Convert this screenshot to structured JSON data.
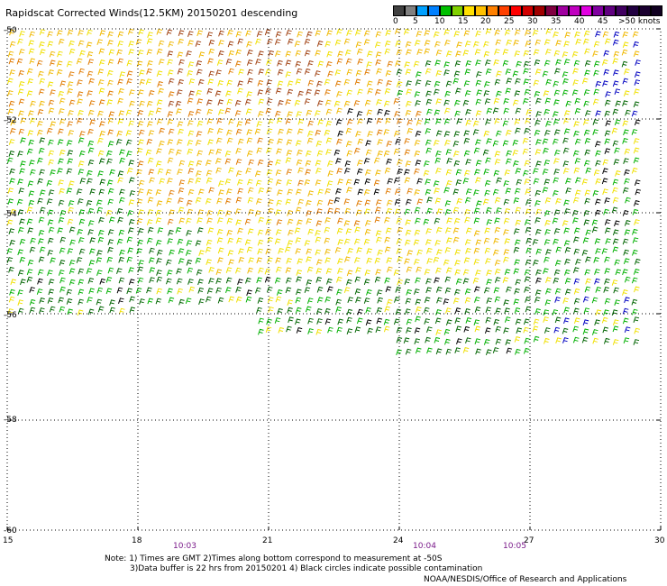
{
  "title": "Rapidscat Corrected Winds(12.5KM) 20150201 descending",
  "legend": {
    "labels": [
      "0",
      "5",
      "10",
      "15",
      "20",
      "25",
      "30",
      "35",
      "40",
      "45",
      ">50 knots"
    ],
    "colors": [
      "#404040",
      "#808080",
      "#00a0ff",
      "#0080ff",
      "#00c000",
      "#80d000",
      "#ffe000",
      "#ffc000",
      "#ff8000",
      "#ff4000",
      "#ff0000",
      "#d00000",
      "#a00000",
      "#800040",
      "#a000a0",
      "#c000c0",
      "#e000e0",
      "#8000a0",
      "#600080",
      "#400060",
      "#200040",
      "#1a0030",
      "#100020"
    ]
  },
  "axes": {
    "y_labels": [
      "-50",
      "-52",
      "-54",
      "-56",
      "-58",
      "-60"
    ],
    "x_labels": [
      "15",
      "18",
      "21",
      "24",
      "27",
      "30"
    ]
  },
  "times": [
    "10:03",
    "10:04",
    "10:05"
  ],
  "notes": {
    "line1": "Note: 1) Times are GMT 2)Times along bottom correspond to measurement at -50S",
    "line2": "3)Data buffer is 22 hrs from 20150201 4) Black circles indicate possible contamination"
  },
  "credit": "NOAA/NESDIS/Office of Research and Applications",
  "colors": {
    "calm": "#000000",
    "blue": "#0000c0",
    "dark_green": "#006400",
    "green": "#00b000",
    "yellow": "#f0e000",
    "gold": "#f0b800",
    "orange": "#e07a00",
    "brown": "#a04010",
    "grid": "#000000"
  }
}
